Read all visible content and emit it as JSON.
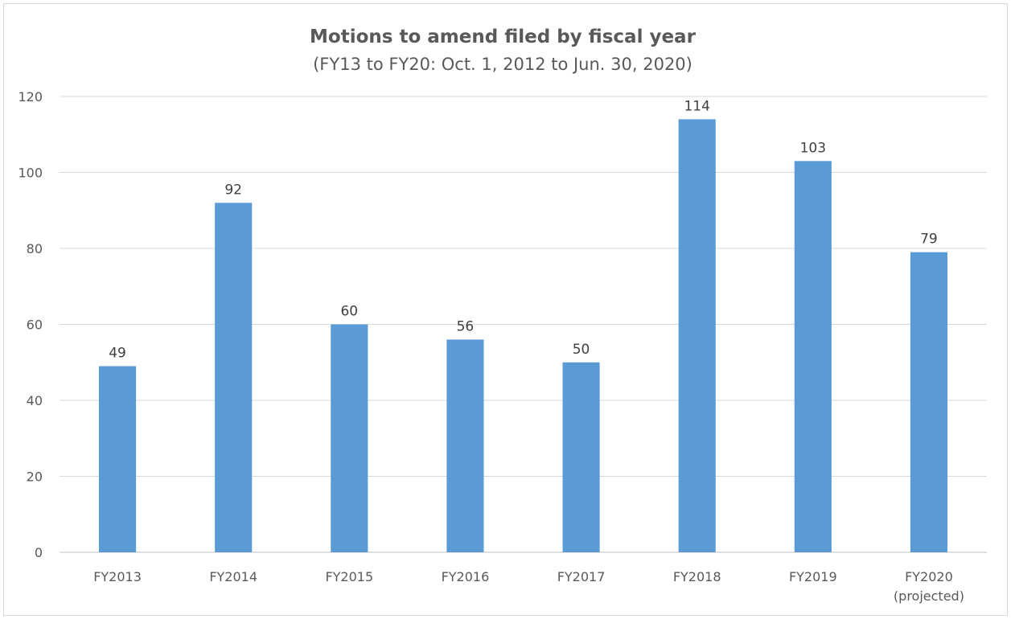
{
  "chart_data": {
    "type": "bar",
    "title": "Motions to amend filed by fiscal year",
    "subtitle": "(FY13 to FY20: Oct. 1, 2012 to Jun. 30, 2020)",
    "categories": [
      "FY2013",
      "FY2014",
      "FY2015",
      "FY2016",
      "FY2017",
      "FY2018",
      "FY2019",
      "FY2020"
    ],
    "category_sublabels": [
      "",
      "",
      "",
      "",
      "",
      "",
      "",
      "(projected)"
    ],
    "values": [
      49,
      92,
      60,
      56,
      50,
      114,
      103,
      79
    ],
    "data_labels": [
      "49",
      "92",
      "60",
      "56",
      "50",
      "114",
      "103",
      "79"
    ],
    "xlabel": "",
    "ylabel": "",
    "ylim": [
      0,
      120
    ],
    "yticks": [
      0,
      20,
      40,
      60,
      80,
      100,
      120
    ],
    "grid": true,
    "legend": "none",
    "bar_color": "#5b9bd5"
  }
}
